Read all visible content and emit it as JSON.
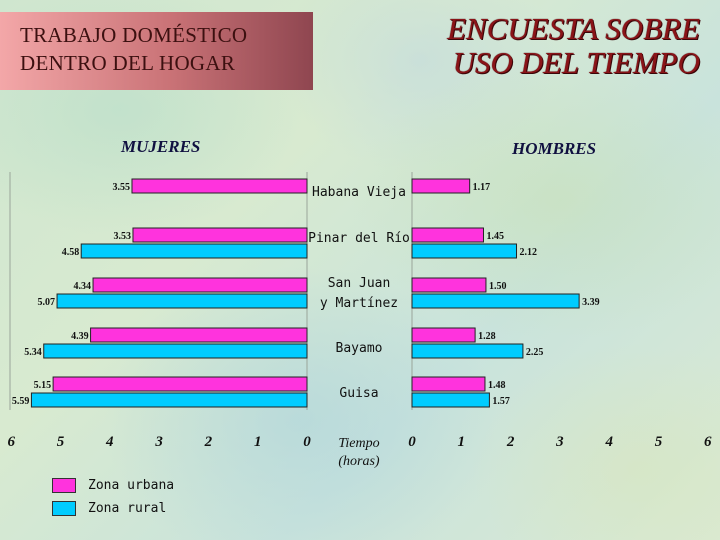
{
  "header": {
    "box_line1": "TRABAJO DOMÉSTICO",
    "box_line2": "DENTRO DEL HOGAR",
    "title_line1": "ENCUESTA SOBRE",
    "title_line2": "USO DEL TIEMPO"
  },
  "colors": {
    "urbana": "#ff33dd",
    "rural": "#00ccff",
    "title": "#8a1418",
    "box": "#c97276"
  },
  "legend": [
    {
      "label": "Zona urbana",
      "color": "#ff33dd"
    },
    {
      "label": "Zona rural",
      "color": "#00ccff"
    }
  ],
  "chart_data": {
    "type": "bar",
    "orientation": "horizontal",
    "layout": "back-to-back",
    "categories": [
      [
        "Habana Vieja"
      ],
      [
        "Pinar del Río"
      ],
      [
        "San Juan",
        "y Martínez"
      ],
      [
        "Bayamo"
      ],
      [
        "Guisa"
      ]
    ],
    "panels": [
      {
        "label": "MUJERES",
        "series": [
          {
            "name": "Zona urbana",
            "values": [
              3.55,
              3.53,
              4.34,
              4.39,
              5.15
            ]
          },
          {
            "name": "Zona rural",
            "values": [
              null,
              4.58,
              5.07,
              5.34,
              5.59
            ]
          }
        ]
      },
      {
        "label": "HOMBRES",
        "series": [
          {
            "name": "Zona urbana",
            "values": [
              1.17,
              1.45,
              1.5,
              1.28,
              1.48
            ]
          },
          {
            "name": "Zona rural",
            "values": [
              null,
              2.12,
              3.39,
              2.25,
              1.57
            ]
          }
        ]
      }
    ],
    "left_ticks": [
      "6",
      "5",
      "4",
      "3",
      "2",
      "1",
      "0"
    ],
    "right_ticks": [
      "0",
      "1",
      "2",
      "3",
      "4",
      "5",
      "6"
    ],
    "xlabel": [
      "Tiempo",
      "(horas)"
    ],
    "xlim": [
      0,
      6
    ],
    "grid": false
  }
}
